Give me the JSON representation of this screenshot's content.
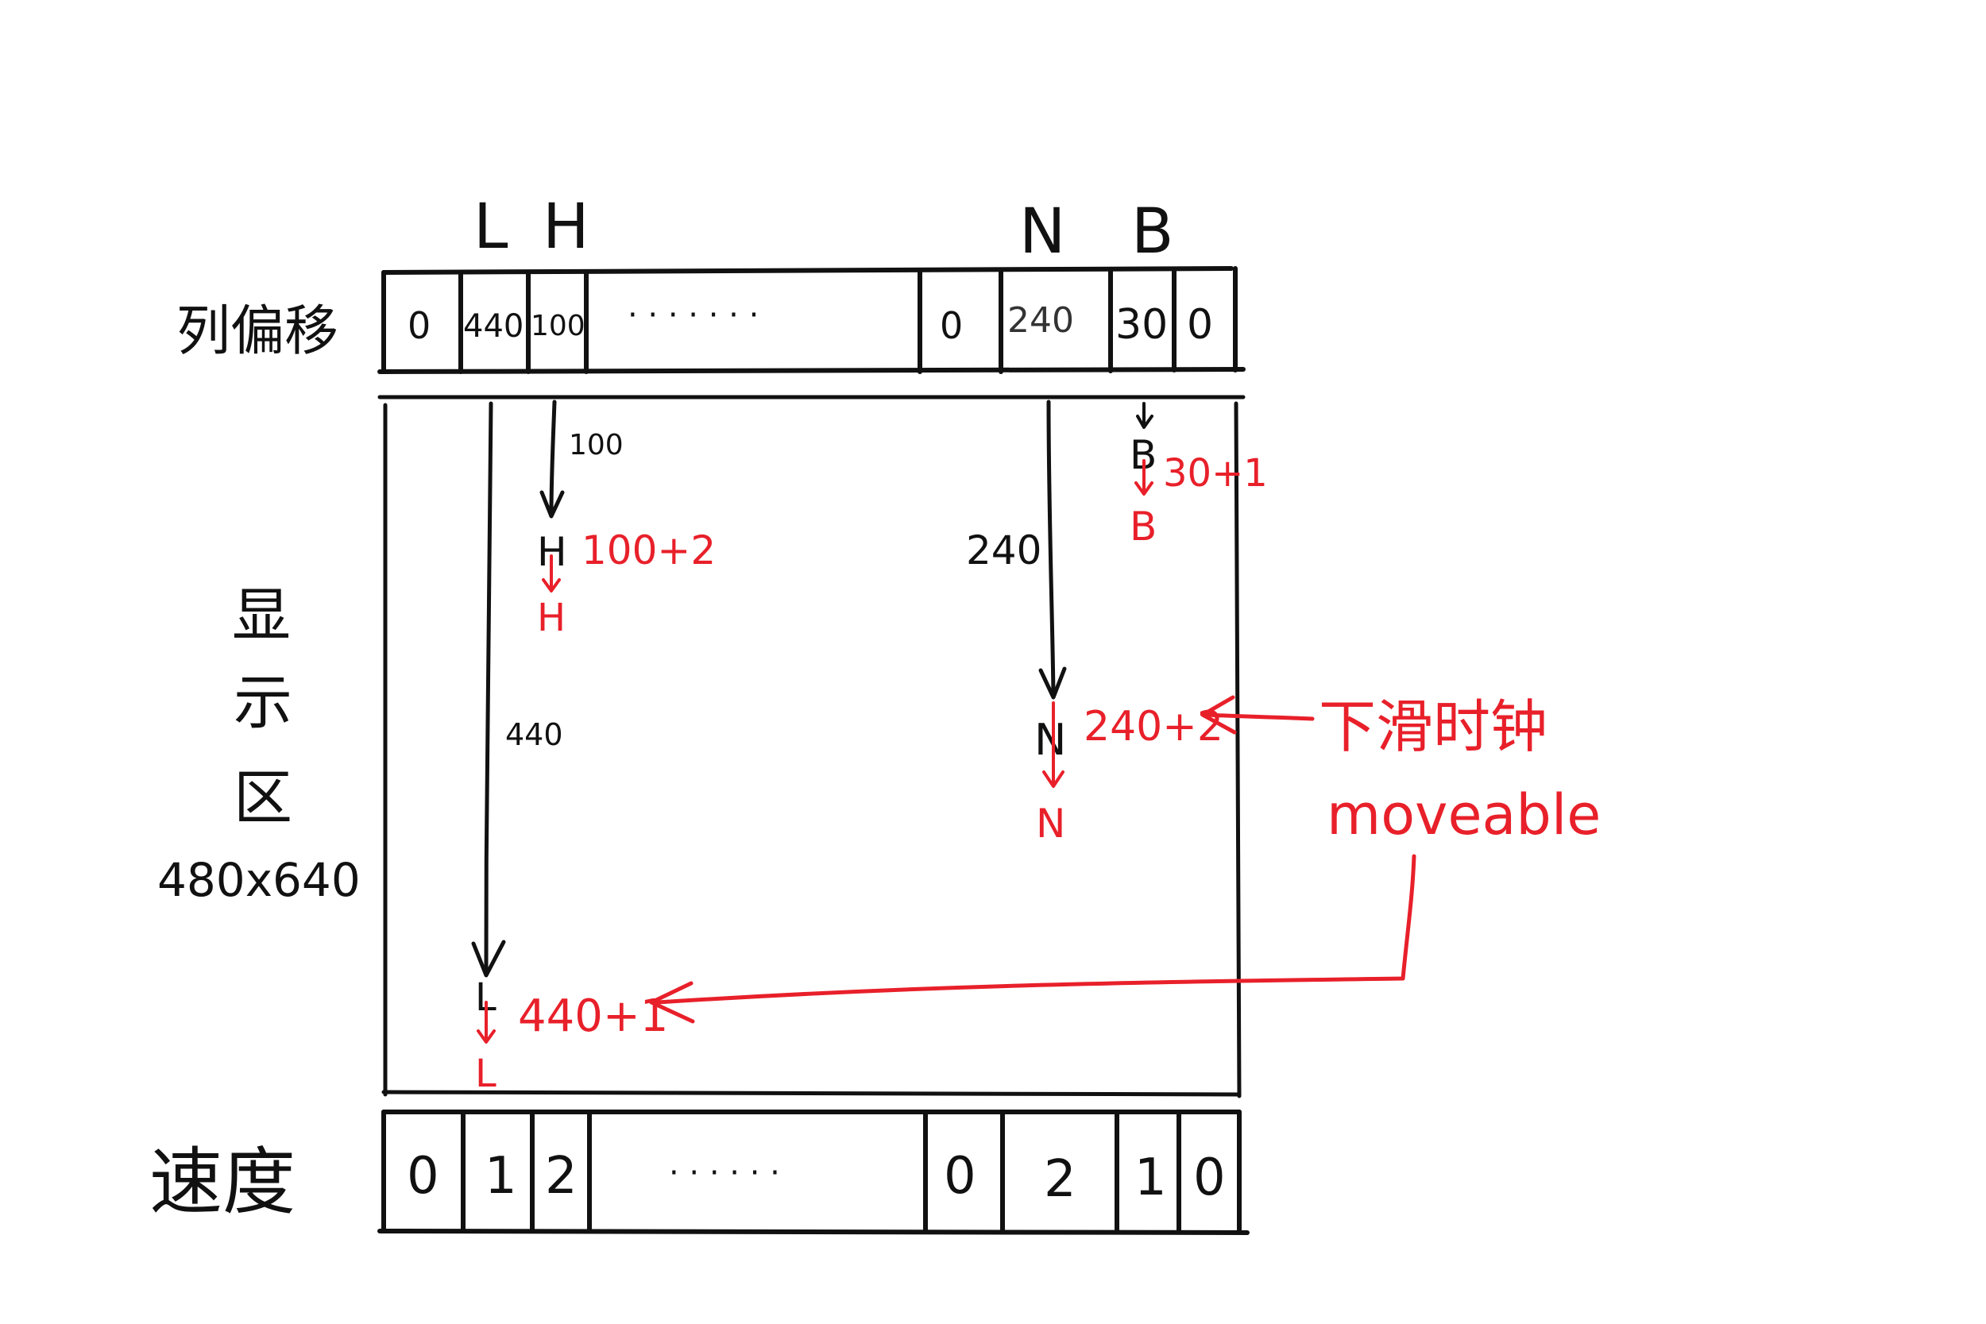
{
  "colors": {
    "ink": "#111111",
    "accent": "#e8202a",
    "background": "#ffffff"
  },
  "column_letters": [
    "L",
    "H",
    "N",
    "B"
  ],
  "offset_row": {
    "label": "列偏移",
    "cells": [
      "0",
      "440",
      "100",
      "· · · · · · ·",
      "0",
      "240",
      "30",
      "0"
    ]
  },
  "display_area": {
    "label_chars": [
      "显",
      "示",
      "区"
    ],
    "size": "480x640"
  },
  "speed_row": {
    "label": "速度",
    "cells": [
      "0",
      "1",
      "2",
      "· · · · · ·",
      "0",
      "2",
      "1",
      "0"
    ]
  },
  "columns": {
    "L": {
      "offset": "440",
      "old_letter": "L",
      "new_letter": "L",
      "update": "440+1"
    },
    "H": {
      "offset": "100",
      "old_letter": "H",
      "new_letter": "H",
      "update": "100+2"
    },
    "N": {
      "offset": "240",
      "old_letter": "N",
      "new_letter": "N",
      "update": "240+2"
    },
    "B": {
      "old_letter": "B",
      "new_letter": "B",
      "update": "30+1"
    }
  },
  "annotation": {
    "clock": "下滑时钟",
    "signal": "moveable"
  }
}
